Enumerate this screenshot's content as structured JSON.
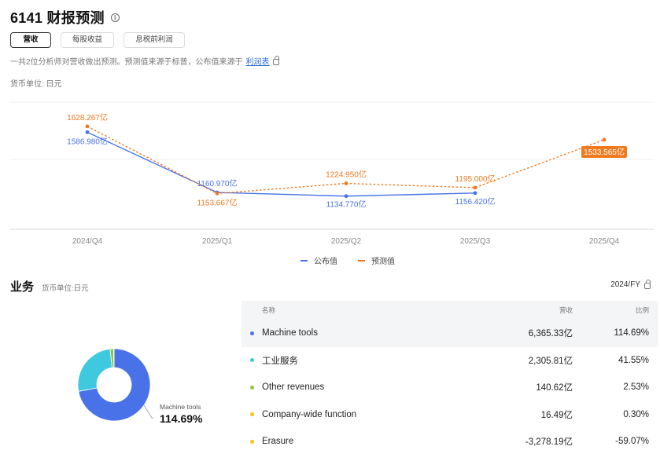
{
  "header": {
    "title": "6141 财报预测",
    "info_icon": "info-circle-icon"
  },
  "tabs": [
    {
      "label": "营收",
      "active": true
    },
    {
      "label": "每股收益",
      "active": false
    },
    {
      "label": "息税前利润",
      "active": false
    }
  ],
  "note": {
    "text": "一共2位分析师对营收做出预测。预测值来源于标普，公布值来源于",
    "link": "利润表"
  },
  "currency_unit": "货币单位: 日元",
  "chart_data": {
    "type": "line",
    "categories": [
      "2024/Q4",
      "2025/Q1",
      "2025/Q2",
      "2025/Q3",
      "2025/Q4"
    ],
    "ylim": [
      900,
      1800
    ],
    "series": [
      {
        "name": "公布值",
        "color": "#4a72e8",
        "style": "solid",
        "values": [
          1586.98,
          1160.97,
          1134.77,
          1156.42,
          null
        ],
        "labels": [
          "1586.980亿",
          "1160.970亿",
          "1134.770亿",
          "1156.420亿",
          ""
        ]
      },
      {
        "name": "预测值",
        "color": "#f07a1f",
        "style": "dotted",
        "values": [
          1628.267,
          1153.667,
          1224.95,
          1195.0,
          1533.565
        ],
        "labels": [
          "1628.267亿",
          "1153.667亿",
          "1224.950亿",
          "1195.000亿",
          "1533.565亿"
        ]
      }
    ],
    "grid": true,
    "legend": "bottom-center"
  },
  "business": {
    "title": "业务",
    "currency": "货币单位:日元",
    "period": "2024/FY",
    "columns": {
      "name": "名称",
      "revenue": "营收",
      "ratio": "比例"
    },
    "rows": [
      {
        "name": "Machine tools",
        "revenue": "6,365.33亿",
        "ratio": "114.69%",
        "color": "#4a72e8"
      },
      {
        "name": "工业服务",
        "revenue": "2,305.81亿",
        "ratio": "41.55%",
        "color": "#3ec9df"
      },
      {
        "name": "Other revenues",
        "revenue": "140.62亿",
        "ratio": "2.53%",
        "color": "#8dc63f"
      },
      {
        "name": "Company-wide function",
        "revenue": "16.49亿",
        "ratio": "0.30%",
        "color": "#f5c518"
      },
      {
        "name": "Erasure",
        "revenue": "-3,278.19亿",
        "ratio": "-59.07%",
        "color": "#f5c518"
      }
    ],
    "donut": {
      "values": [
        6365.33,
        2305.81,
        140.62,
        16.49
      ],
      "colors": [
        "#4a72e8",
        "#3ec9df",
        "#8dc63f",
        "#f5c518"
      ],
      "caption_name": "Machine tools",
      "caption_pct": "114.69%"
    }
  }
}
